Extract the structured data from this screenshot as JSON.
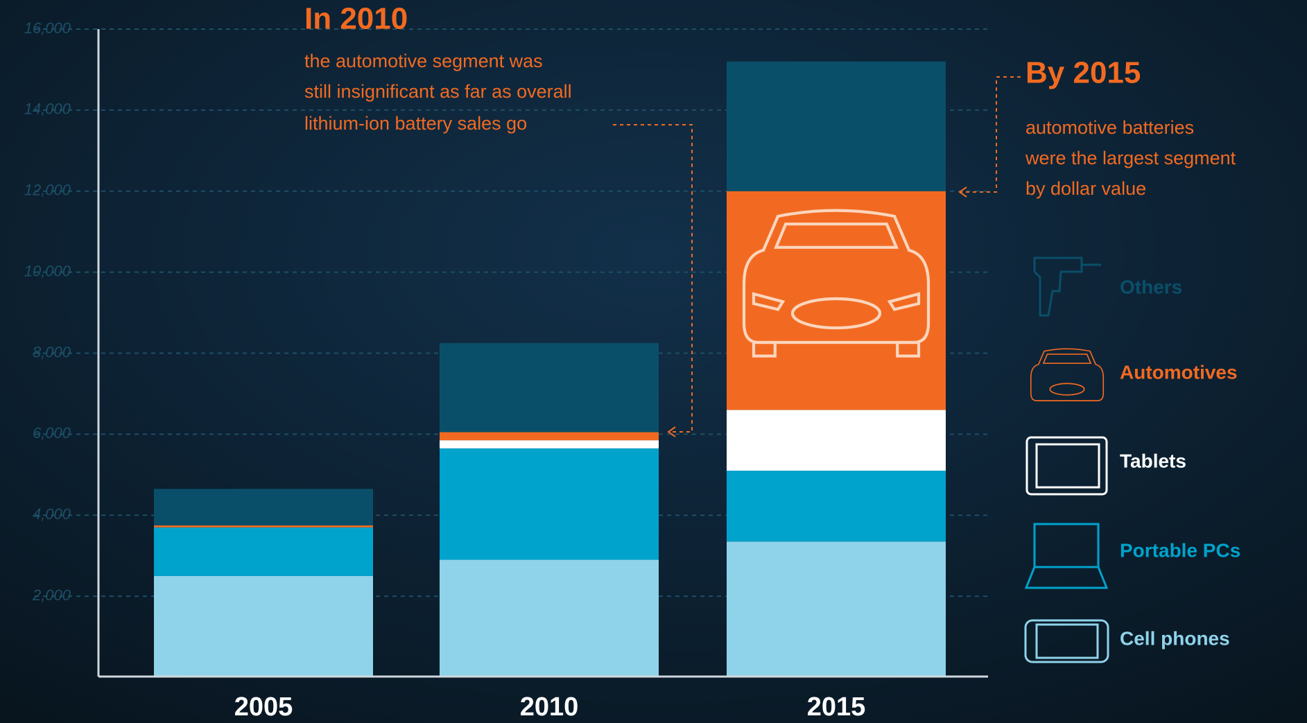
{
  "chart_data": {
    "type": "stacked-bar",
    "categories": [
      "2005",
      "2010",
      "2015"
    ],
    "series": [
      {
        "name": "Cell phones",
        "color": "#8fd3ea",
        "values": [
          2500,
          2900,
          3350
        ]
      },
      {
        "name": "Portable PCs",
        "color": "#00a3cc",
        "values": [
          1200,
          2750,
          1750
        ]
      },
      {
        "name": "Tablets",
        "color": "#ffffff",
        "values": [
          0,
          200,
          1500
        ]
      },
      {
        "name": "Automotives",
        "color": "#f26a21",
        "values": [
          50,
          200,
          5400
        ]
      },
      {
        "name": "Others",
        "color": "#0a4f69",
        "values": [
          900,
          2200,
          3200
        ]
      }
    ],
    "ylim": [
      0,
      16000
    ],
    "yticks": [
      {
        "value": 2000,
        "label": "2,000"
      },
      {
        "value": 4000,
        "label": "4,000"
      },
      {
        "value": 6000,
        "label": "6,000"
      },
      {
        "value": 8000,
        "label": "8,000"
      },
      {
        "value": 10000,
        "label": "10,000"
      },
      {
        "value": 12000,
        "label": "12,000"
      },
      {
        "value": 14000,
        "label": "14,000"
      },
      {
        "value": 16000,
        "label": "16,000"
      }
    ],
    "grid": true,
    "annotations": [
      {
        "title": "In 2010",
        "lines": [
          "the automotive segment was",
          "still insignificant as far as overall",
          "lithium-ion battery sales go"
        ]
      },
      {
        "title": "By 2015",
        "lines": [
          "automotive batteries",
          "were the largest segment",
          "by dollar value"
        ]
      }
    ]
  }
}
